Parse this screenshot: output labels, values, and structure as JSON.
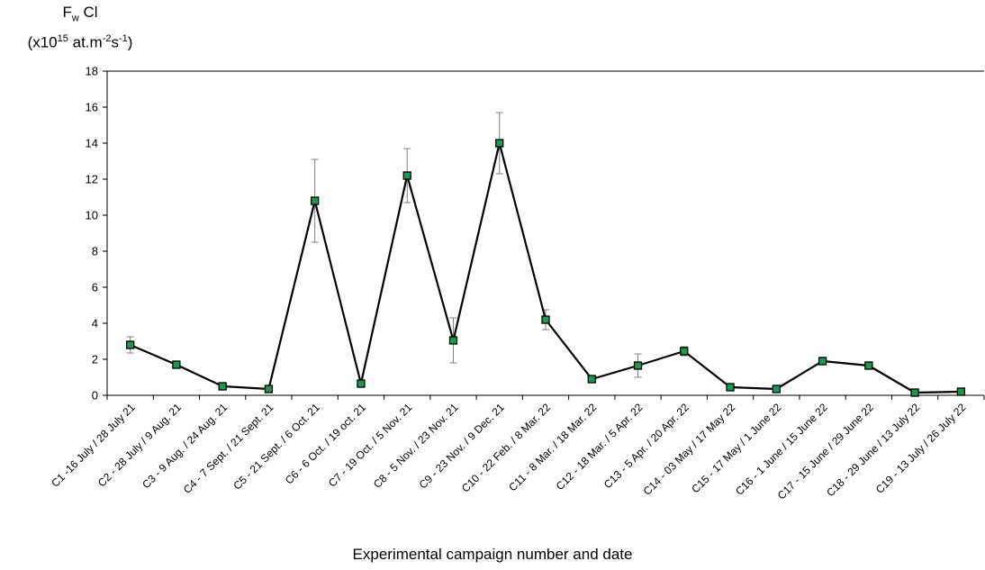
{
  "chart_data": {
    "type": "line",
    "ylabel": {
      "line1_main": "F",
      "line1_sub": "w",
      "line1_rest": " Cl",
      "line2_pre": "(x10",
      "line2_sup1": "15",
      "line2_mid": " at.m",
      "line2_sup2": "-2",
      "line2_mid2": "s",
      "line2_sup3": "-1",
      "line2_end": ")"
    },
    "xlabel": "Experimental campaign number and date",
    "ylim": [
      0,
      18
    ],
    "yticks": [
      0,
      2,
      4,
      6,
      8,
      10,
      12,
      14,
      16,
      18
    ],
    "grid": false,
    "colors": {
      "line": "#000000",
      "marker_fill": "#1a9b4b",
      "marker_edge": "#000000",
      "error_bar": "#7f7f7f"
    },
    "categories": [
      "C1 -16 July / 28 July 21",
      "C2 - 28 July / 9 Aug. 21",
      "C3 - 9 Aug. / 24 Aug. 21",
      "C4 - 7 Sept. / 21 Sept. 21",
      "C5 - 21 Sept. / 6 Oct. 21",
      "C6 - 6 Oct. / 19 oct. 21",
      "C7 - 19 Oct. / 5 Nov. 21",
      "C8 - 5 Nov. / 23 Nov. 21",
      "C9 - 23 Nov. / 9 Dec. 21",
      "C10 - 22 Feb. / 8 Mar. 22",
      "C11 - 8 Mar. / 18 Mar. 22",
      "C12 - 18 Mar. / 5 Apr. 22",
      "C13 - 5 Apr. / 20 Apr. 22",
      "C14 - 03 May / 17 May 22",
      "C15 - 17 May / 1 June 22",
      "C16 - 1 June / 15 June 22",
      "C17 - 15 June / 29 June 22",
      "C18 - 29 June / 13 July 22",
      "C19 - 13 July / 26 July 22"
    ],
    "values": [
      2.8,
      1.7,
      0.5,
      0.35,
      10.8,
      0.65,
      12.2,
      3.05,
      14.0,
      4.2,
      0.9,
      1.65,
      2.45,
      0.45,
      0.35,
      1.9,
      1.65,
      0.15,
      0.2
    ],
    "errors": [
      0.45,
      0.15,
      0.05,
      0.05,
      2.3,
      0.1,
      1.5,
      1.25,
      1.7,
      0.55,
      0.1,
      0.65,
      0.25,
      0.05,
      0.05,
      0.15,
      0.1,
      0.05,
      0.05
    ]
  }
}
